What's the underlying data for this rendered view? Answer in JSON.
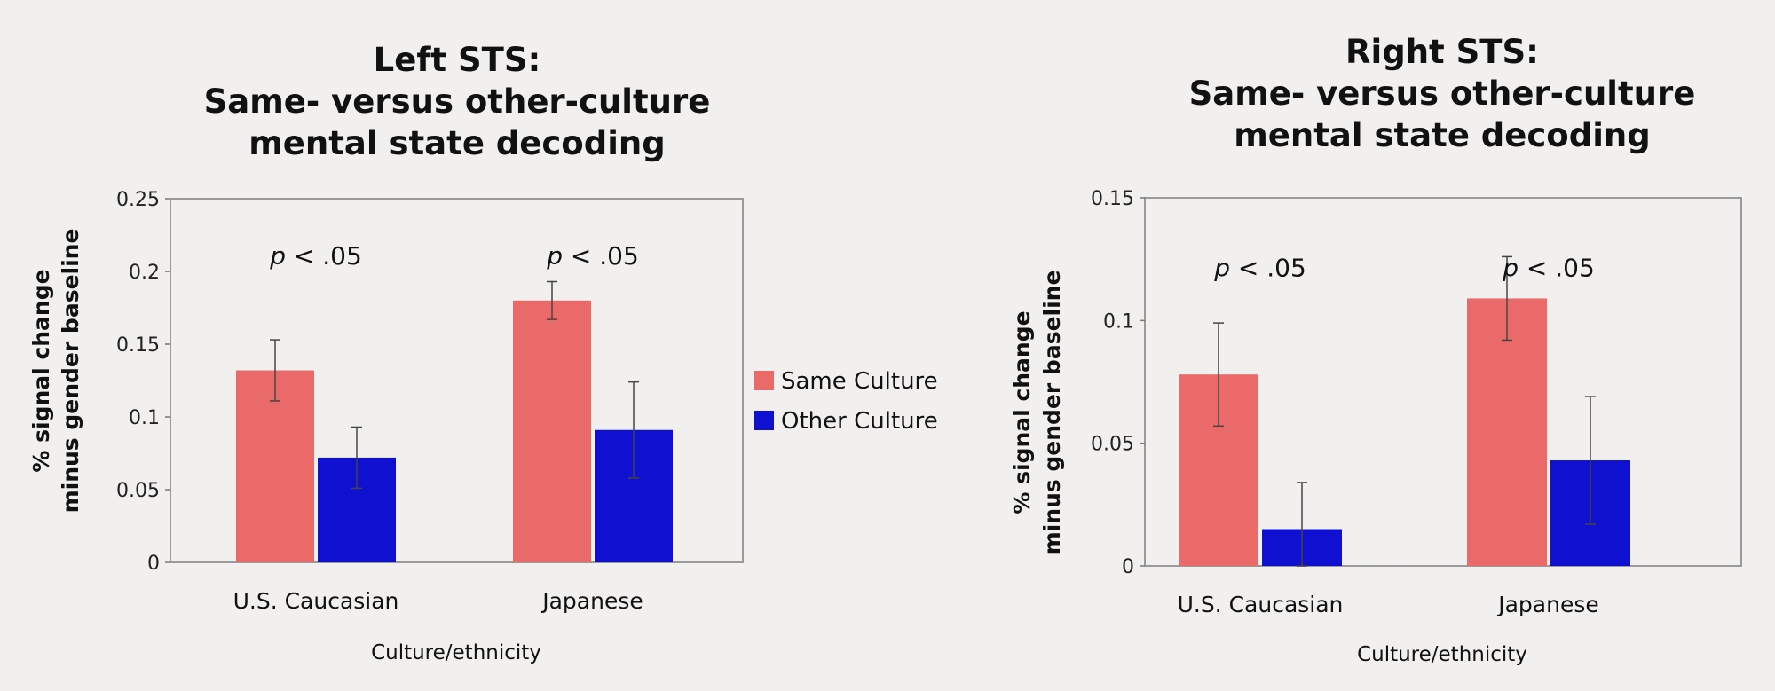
{
  "legend": [
    {
      "label": "Same Culture",
      "color": "#ea6a6a"
    },
    {
      "label": "Other Culture",
      "color": "#1010d0"
    }
  ],
  "chart_data": [
    {
      "type": "bar",
      "title": [
        "Left STS:",
        "Same- versus other-culture",
        "mental state decoding"
      ],
      "xlabel": "Culture/ethnicity",
      "ylabel": [
        "% signal change",
        "minus gender baseline"
      ],
      "categories": [
        "U.S. Caucasian",
        "Japanese"
      ],
      "ylim": [
        0,
        0.25
      ],
      "yticks": [
        0,
        0.05,
        0.1,
        0.15,
        0.2,
        0.25
      ],
      "ytick_labels": [
        "0",
        "0.05",
        "0.1",
        "0.15",
        "0.2",
        "0.25"
      ],
      "series": [
        {
          "name": "Same Culture",
          "color": "#ea6a6a",
          "values": [
            0.132,
            0.18
          ],
          "errors": [
            0.021,
            0.013
          ]
        },
        {
          "name": "Other Culture",
          "color": "#1010d0",
          "values": [
            0.072,
            0.091
          ],
          "errors": [
            0.021,
            0.033
          ]
        }
      ],
      "annotations": [
        {
          "category": "U.S. Caucasian",
          "p": "p",
          "text": " < .05",
          "y": 0.205
        },
        {
          "category": "Japanese",
          "p": "p",
          "text": " < .05",
          "y": 0.205
        }
      ]
    },
    {
      "type": "bar",
      "title": [
        "Right STS:",
        "Same- versus other-culture",
        "mental state decoding"
      ],
      "xlabel": "Culture/ethnicity",
      "ylabel": [
        "% signal change",
        "minus gender baseline"
      ],
      "categories": [
        "U.S. Caucasian",
        "Japanese"
      ],
      "ylim": [
        0,
        0.15
      ],
      "yticks": [
        0,
        0.05,
        0.1,
        0.15
      ],
      "ytick_labels": [
        "0",
        "0.05",
        "0.1",
        "0.15"
      ],
      "series": [
        {
          "name": "Same Culture",
          "color": "#ea6a6a",
          "values": [
            0.078,
            0.109
          ],
          "errors": [
            0.021,
            0.017
          ]
        },
        {
          "name": "Other Culture",
          "color": "#1010d0",
          "values": [
            0.015,
            0.043
          ],
          "errors": [
            0.019,
            0.026
          ]
        }
      ],
      "annotations": [
        {
          "category": "U.S. Caucasian",
          "p": "p",
          "text": " < .05",
          "y": 0.118
        },
        {
          "category": "Japanese",
          "p": "p",
          "text": " < .05",
          "y": 0.118
        }
      ]
    }
  ]
}
